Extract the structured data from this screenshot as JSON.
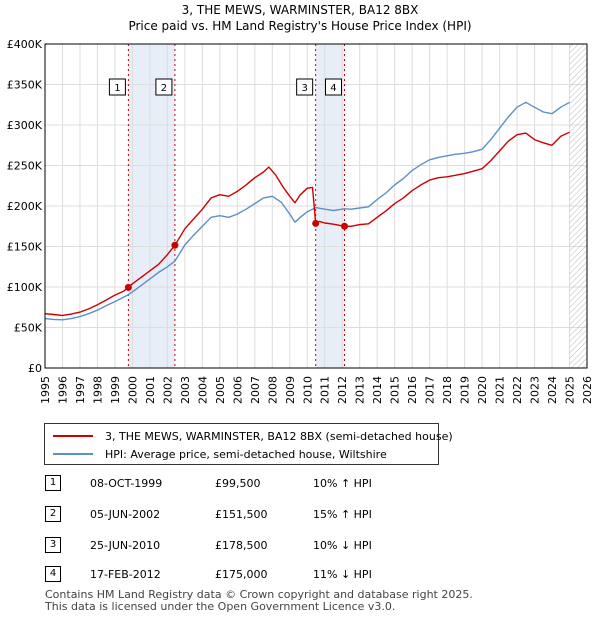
{
  "chart_data": {
    "type": "line",
    "title": "3, THE MEWS, WARMINSTER, BA12 8BX",
    "subtitle": "Price paid vs. HM Land Registry's House Price Index (HPI)",
    "xlim": [
      1995,
      2026
    ],
    "ylim": [
      0,
      400000
    ],
    "x_ticks": [
      1995,
      1996,
      1997,
      1998,
      1999,
      2000,
      2001,
      2002,
      2003,
      2004,
      2005,
      2006,
      2007,
      2008,
      2009,
      2010,
      2011,
      2012,
      2013,
      2014,
      2015,
      2016,
      2017,
      2018,
      2019,
      2020,
      2021,
      2022,
      2023,
      2024,
      2025,
      2026
    ],
    "y_ticks": [
      {
        "value": 0,
        "label": "£0"
      },
      {
        "value": 50000,
        "label": "£50K"
      },
      {
        "value": 100000,
        "label": "£100K"
      },
      {
        "value": 150000,
        "label": "£150K"
      },
      {
        "value": 200000,
        "label": "£200K"
      },
      {
        "value": 250000,
        "label": "£250K"
      },
      {
        "value": 300000,
        "label": "£300K"
      },
      {
        "value": 350000,
        "label": "£350K"
      },
      {
        "value": 400000,
        "label": "£400K"
      }
    ],
    "future_hatch_from": 2025.0,
    "series": [
      {
        "name": "3, THE MEWS, WARMINSTER, BA12 8BX (semi-detached house)",
        "color": "#cc0000",
        "points": [
          [
            1995.0,
            67000
          ],
          [
            1995.5,
            66000
          ],
          [
            1996.0,
            65000
          ],
          [
            1996.5,
            66500
          ],
          [
            1997.0,
            69000
          ],
          [
            1997.5,
            73000
          ],
          [
            1998.0,
            78000
          ],
          [
            1998.5,
            84000
          ],
          [
            1999.0,
            90000
          ],
          [
            1999.5,
            95000
          ],
          [
            1999.77,
            99500
          ],
          [
            2000.0,
            104000
          ],
          [
            2000.5,
            112000
          ],
          [
            2001.0,
            120000
          ],
          [
            2001.5,
            128000
          ],
          [
            2002.0,
            140000
          ],
          [
            2002.43,
            151500
          ],
          [
            2003.0,
            172000
          ],
          [
            2003.5,
            184000
          ],
          [
            2004.0,
            196000
          ],
          [
            2004.5,
            210000
          ],
          [
            2005.0,
            214000
          ],
          [
            2005.5,
            212000
          ],
          [
            2006.0,
            218000
          ],
          [
            2006.5,
            226000
          ],
          [
            2007.0,
            235000
          ],
          [
            2007.5,
            242000
          ],
          [
            2007.8,
            248000
          ],
          [
            2008.2,
            238000
          ],
          [
            2008.6,
            224000
          ],
          [
            2009.0,
            212000
          ],
          [
            2009.3,
            204000
          ],
          [
            2009.6,
            214000
          ],
          [
            2010.0,
            222000
          ],
          [
            2010.3,
            223000
          ],
          [
            2010.48,
            178500
          ],
          [
            2010.7,
            181000
          ],
          [
            2011.0,
            179000
          ],
          [
            2011.5,
            177500
          ],
          [
            2012.13,
            175000
          ],
          [
            2012.5,
            175000
          ],
          [
            2013.0,
            177000
          ],
          [
            2013.5,
            178000
          ],
          [
            2014.0,
            186000
          ],
          [
            2014.5,
            194000
          ],
          [
            2015.0,
            203000
          ],
          [
            2015.5,
            210000
          ],
          [
            2016.0,
            219000
          ],
          [
            2016.5,
            226000
          ],
          [
            2017.0,
            232000
          ],
          [
            2017.5,
            235000
          ],
          [
            2018.0,
            236000
          ],
          [
            2018.5,
            238000
          ],
          [
            2019.0,
            240000
          ],
          [
            2019.5,
            243000
          ],
          [
            2020.0,
            246000
          ],
          [
            2020.5,
            256000
          ],
          [
            2021.0,
            268000
          ],
          [
            2021.5,
            280000
          ],
          [
            2022.0,
            288000
          ],
          [
            2022.5,
            290000
          ],
          [
            2023.0,
            282000
          ],
          [
            2023.5,
            278000
          ],
          [
            2024.0,
            275000
          ],
          [
            2024.5,
            286000
          ],
          [
            2025.0,
            291000
          ]
        ]
      },
      {
        "name": "HPI: Average price, semi-detached house, Wiltshire",
        "color": "#5b8fc9",
        "points": [
          [
            1995.0,
            61000
          ],
          [
            1995.5,
            60000
          ],
          [
            1996.0,
            59500
          ],
          [
            1996.5,
            61000
          ],
          [
            1997.0,
            63500
          ],
          [
            1997.5,
            67000
          ],
          [
            1998.0,
            71500
          ],
          [
            1998.5,
            77000
          ],
          [
            1999.0,
            82000
          ],
          [
            1999.77,
            90500
          ],
          [
            2000.0,
            94000
          ],
          [
            2000.5,
            102000
          ],
          [
            2001.0,
            110000
          ],
          [
            2001.5,
            118000
          ],
          [
            2002.0,
            125000
          ],
          [
            2002.43,
            132000
          ],
          [
            2003.0,
            152000
          ],
          [
            2003.5,
            164000
          ],
          [
            2004.0,
            175000
          ],
          [
            2004.5,
            186000
          ],
          [
            2005.0,
            188000
          ],
          [
            2005.5,
            186000
          ],
          [
            2006.0,
            190000
          ],
          [
            2006.5,
            196000
          ],
          [
            2007.0,
            203000
          ],
          [
            2007.5,
            210000
          ],
          [
            2008.0,
            212000
          ],
          [
            2008.5,
            205000
          ],
          [
            2009.0,
            190000
          ],
          [
            2009.3,
            180000
          ],
          [
            2009.6,
            186000
          ],
          [
            2010.0,
            193000
          ],
          [
            2010.48,
            198000
          ],
          [
            2011.0,
            196000
          ],
          [
            2011.5,
            194500
          ],
          [
            2012.13,
            196500
          ],
          [
            2012.5,
            196000
          ],
          [
            2013.0,
            197500
          ],
          [
            2013.5,
            199000
          ],
          [
            2014.0,
            208000
          ],
          [
            2014.5,
            216000
          ],
          [
            2015.0,
            226000
          ],
          [
            2015.5,
            234000
          ],
          [
            2016.0,
            244000
          ],
          [
            2016.5,
            251000
          ],
          [
            2017.0,
            257000
          ],
          [
            2017.5,
            260000
          ],
          [
            2018.0,
            262000
          ],
          [
            2018.5,
            264000
          ],
          [
            2019.0,
            265000
          ],
          [
            2019.5,
            267000
          ],
          [
            2020.0,
            270000
          ],
          [
            2020.5,
            282000
          ],
          [
            2021.0,
            296000
          ],
          [
            2021.5,
            310000
          ],
          [
            2022.0,
            322000
          ],
          [
            2022.5,
            328000
          ],
          [
            2023.0,
            322000
          ],
          [
            2023.5,
            316000
          ],
          [
            2024.0,
            314000
          ],
          [
            2024.5,
            322000
          ],
          [
            2025.0,
            328000
          ]
        ]
      }
    ],
    "sales": [
      {
        "id": "1",
        "x": 1999.77,
        "price": 99500,
        "date": "08-OCT-1999",
        "price_label": "£99,500",
        "delta": "10% ↑ HPI"
      },
      {
        "id": "2",
        "x": 2002.43,
        "price": 151500,
        "date": "05-JUN-2002",
        "price_label": "£151,500",
        "delta": "15% ↑ HPI"
      },
      {
        "id": "3",
        "x": 2010.48,
        "price": 178500,
        "date": "25-JUN-2010",
        "price_label": "£178,500",
        "delta": "10% ↓ HPI"
      },
      {
        "id": "4",
        "x": 2012.13,
        "price": 175000,
        "date": "17-FEB-2012",
        "price_label": "£175,000",
        "delta": "11% ↓ HPI"
      }
    ],
    "shaded_spans": [
      [
        1999.77,
        2002.43
      ],
      [
        2010.48,
        2012.13
      ]
    ],
    "colors": {
      "shade": "#e8eef8",
      "grid": "#dddddd",
      "vline": "#cc0000"
    }
  },
  "legend": {
    "property_label": "3, THE MEWS, WARMINSTER, BA12 8BX (semi-detached house)",
    "hpi_label": "HPI: Average price, semi-detached house, Wiltshire",
    "property_color": "#cc0000",
    "hpi_color": "#5b8fc9"
  },
  "footer": {
    "line1": "Contains HM Land Registry data © Crown copyright and database right 2025.",
    "line2": "This data is licensed under the Open Government Licence v3.0."
  }
}
